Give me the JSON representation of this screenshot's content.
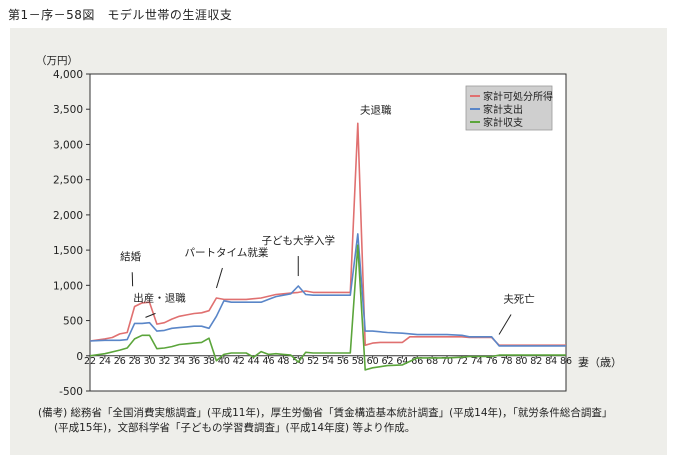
{
  "figure_title": "第1－序－58図　モデル世帯の生涯収支",
  "note_lines": [
    "(備考) 総務省「全国消費実態調査」(平成11年)，厚生労働省「賃金構造基本統計調査」(平成14年)，「就労条件総合調査」",
    "(平成15年)，文部科学省「子どもの学習費調査」(平成14年度) 等より作成。"
  ],
  "chart_data": {
    "type": "line",
    "title": "",
    "xlabel": "妻（歳）",
    "ylabel": "（万円）",
    "ylim": [
      -500,
      4000
    ],
    "yticks": [
      -500,
      0,
      500,
      1000,
      1500,
      2000,
      2500,
      3000,
      3500,
      4000
    ],
    "ytick_labels": [
      "-500",
      "0",
      "500",
      "1,000",
      "1,500",
      "2,000",
      "2,500",
      "3,000",
      "3,500",
      "4,000"
    ],
    "xlim": [
      22,
      86
    ],
    "xticks": [
      22,
      24,
      26,
      28,
      30,
      32,
      34,
      36,
      38,
      40,
      42,
      44,
      46,
      48,
      50,
      52,
      54,
      56,
      58,
      60,
      62,
      64,
      66,
      68,
      70,
      72,
      74,
      76,
      78,
      80,
      82,
      84,
      86
    ],
    "legend_position": "top-right",
    "grid": false,
    "series": [
      {
        "name": "家計可処分所得",
        "color": "#e07070",
        "points": [
          [
            22,
            210
          ],
          [
            24,
            240
          ],
          [
            25,
            260
          ],
          [
            26,
            310
          ],
          [
            27,
            330
          ],
          [
            28,
            700
          ],
          [
            29,
            750
          ],
          [
            30,
            760
          ],
          [
            31,
            450
          ],
          [
            32,
            470
          ],
          [
            33,
            520
          ],
          [
            34,
            560
          ],
          [
            35,
            580
          ],
          [
            36,
            600
          ],
          [
            37,
            610
          ],
          [
            38,
            640
          ],
          [
            39,
            820
          ],
          [
            40,
            800
          ],
          [
            41,
            800
          ],
          [
            43,
            800
          ],
          [
            45,
            820
          ],
          [
            47,
            870
          ],
          [
            48,
            880
          ],
          [
            49,
            890
          ],
          [
            50,
            900
          ],
          [
            51,
            920
          ],
          [
            52,
            900
          ],
          [
            53,
            900
          ],
          [
            55,
            900
          ],
          [
            57,
            900
          ],
          [
            58,
            3300
          ],
          [
            59,
            150
          ],
          [
            60,
            180
          ],
          [
            61,
            190
          ],
          [
            64,
            190
          ],
          [
            65,
            270
          ],
          [
            70,
            270
          ],
          [
            72,
            270
          ],
          [
            73,
            260
          ],
          [
            76,
            260
          ],
          [
            77,
            150
          ],
          [
            80,
            150
          ],
          [
            86,
            150
          ]
        ]
      },
      {
        "name": "家計支出",
        "color": "#5a86c8",
        "points": [
          [
            22,
            210
          ],
          [
            24,
            220
          ],
          [
            26,
            220
          ],
          [
            27,
            230
          ],
          [
            28,
            460
          ],
          [
            29,
            460
          ],
          [
            30,
            470
          ],
          [
            31,
            350
          ],
          [
            32,
            360
          ],
          [
            33,
            390
          ],
          [
            34,
            400
          ],
          [
            35,
            410
          ],
          [
            36,
            420
          ],
          [
            37,
            420
          ],
          [
            38,
            390
          ],
          [
            39,
            560
          ],
          [
            40,
            780
          ],
          [
            41,
            760
          ],
          [
            43,
            760
          ],
          [
            45,
            760
          ],
          [
            46,
            800
          ],
          [
            47,
            840
          ],
          [
            48,
            860
          ],
          [
            49,
            880
          ],
          [
            50,
            990
          ],
          [
            51,
            870
          ],
          [
            52,
            860
          ],
          [
            53,
            860
          ],
          [
            55,
            860
          ],
          [
            57,
            860
          ],
          [
            58,
            1730
          ],
          [
            59,
            350
          ],
          [
            60,
            350
          ],
          [
            62,
            330
          ],
          [
            64,
            320
          ],
          [
            66,
            300
          ],
          [
            70,
            300
          ],
          [
            72,
            290
          ],
          [
            73,
            270
          ],
          [
            76,
            270
          ],
          [
            77,
            140
          ],
          [
            80,
            140
          ],
          [
            86,
            140
          ]
        ]
      },
      {
        "name": "家計収支",
        "color": "#5ba53b",
        "points": [
          [
            22,
            0
          ],
          [
            24,
            30
          ],
          [
            26,
            80
          ],
          [
            27,
            110
          ],
          [
            28,
            240
          ],
          [
            29,
            290
          ],
          [
            30,
            290
          ],
          [
            31,
            100
          ],
          [
            32,
            110
          ],
          [
            33,
            130
          ],
          [
            34,
            160
          ],
          [
            35,
            170
          ],
          [
            36,
            180
          ],
          [
            37,
            190
          ],
          [
            38,
            250
          ],
          [
            39,
            -70
          ],
          [
            40,
            20
          ],
          [
            41,
            40
          ],
          [
            43,
            40
          ],
          [
            44,
            -20
          ],
          [
            45,
            60
          ],
          [
            46,
            20
          ],
          [
            47,
            30
          ],
          [
            48,
            20
          ],
          [
            49,
            10
          ],
          [
            50,
            -90
          ],
          [
            51,
            50
          ],
          [
            52,
            40
          ],
          [
            53,
            40
          ],
          [
            55,
            40
          ],
          [
            57,
            40
          ],
          [
            58,
            1570
          ],
          [
            59,
            -200
          ],
          [
            60,
            -170
          ],
          [
            62,
            -140
          ],
          [
            64,
            -130
          ],
          [
            66,
            -30
          ],
          [
            70,
            -30
          ],
          [
            72,
            -20
          ],
          [
            73,
            -10
          ],
          [
            76,
            -10
          ],
          [
            77,
            10
          ],
          [
            80,
            10
          ],
          [
            86,
            10
          ]
        ]
      }
    ],
    "annotations": [
      {
        "text": "結婚",
        "x": 28,
        "y": 760
      },
      {
        "text": "出産・退職",
        "x": 30,
        "y": 460
      },
      {
        "text": "パートタイム就業",
        "x": 39,
        "y": 820
      },
      {
        "text": "子ども大学入学",
        "x": 50,
        "y": 990
      },
      {
        "text": "夫退職",
        "x": 58,
        "y": 3300
      },
      {
        "text": "夫死亡",
        "x": 77,
        "y": 160
      }
    ]
  }
}
